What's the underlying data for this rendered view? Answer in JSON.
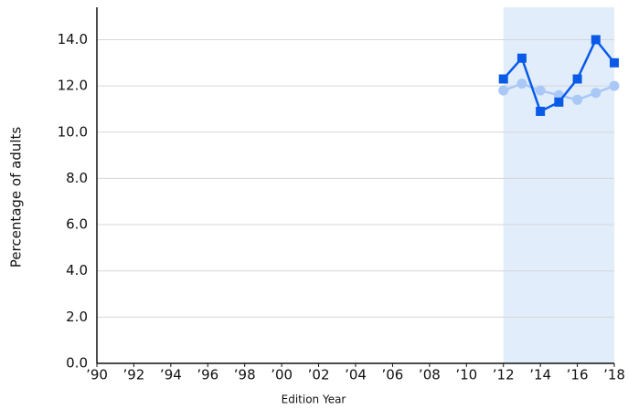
{
  "chart_data": {
    "type": "line",
    "x_label": "Edition Year",
    "y_label": "Percentage of adults",
    "x": [
      2012,
      2013,
      2014,
      2015,
      2016,
      2017,
      2018
    ],
    "series": [
      {
        "color": "#0a5ae8",
        "marker": "square",
        "values": [
          12.3,
          13.2,
          10.9,
          11.3,
          12.3,
          14.0,
          13.0
        ]
      },
      {
        "color": "#a9c8f5",
        "marker": "circle",
        "values": [
          11.8,
          12.1,
          11.8,
          11.6,
          11.4,
          11.7,
          12.0
        ]
      }
    ],
    "highlight_range": [
      2012,
      2018
    ],
    "highlight_color": "#e1edfb",
    "xlim": [
      1990,
      2018
    ],
    "ylim": [
      0,
      15.4
    ],
    "xticks": [
      {
        "value": 1990,
        "label": "’90"
      },
      {
        "value": 1992,
        "label": "’92"
      },
      {
        "value": 1994,
        "label": "’94"
      },
      {
        "value": 1996,
        "label": "’96"
      },
      {
        "value": 1998,
        "label": "’98"
      },
      {
        "value": 2000,
        "label": "’00"
      },
      {
        "value": 2002,
        "label": "’02"
      },
      {
        "value": 2004,
        "label": "’04"
      },
      {
        "value": 2006,
        "label": "’06"
      },
      {
        "value": 2008,
        "label": "’08"
      },
      {
        "value": 2010,
        "label": "’10"
      },
      {
        "value": 2012,
        "label": "’12"
      },
      {
        "value": 2014,
        "label": "’14"
      },
      {
        "value": 2016,
        "label": "’16"
      },
      {
        "value": 2018,
        "label": "’18"
      }
    ],
    "yticks": [
      {
        "value": 0,
        "label": "0.0"
      },
      {
        "value": 2,
        "label": "2.0"
      },
      {
        "value": 4,
        "label": "4.0"
      },
      {
        "value": 6,
        "label": "6.0"
      },
      {
        "value": 8,
        "label": "8.0"
      },
      {
        "value": 10,
        "label": "10.0"
      },
      {
        "value": 12,
        "label": "12.0"
      },
      {
        "value": 14,
        "label": "14.0"
      }
    ],
    "grid": true
  }
}
